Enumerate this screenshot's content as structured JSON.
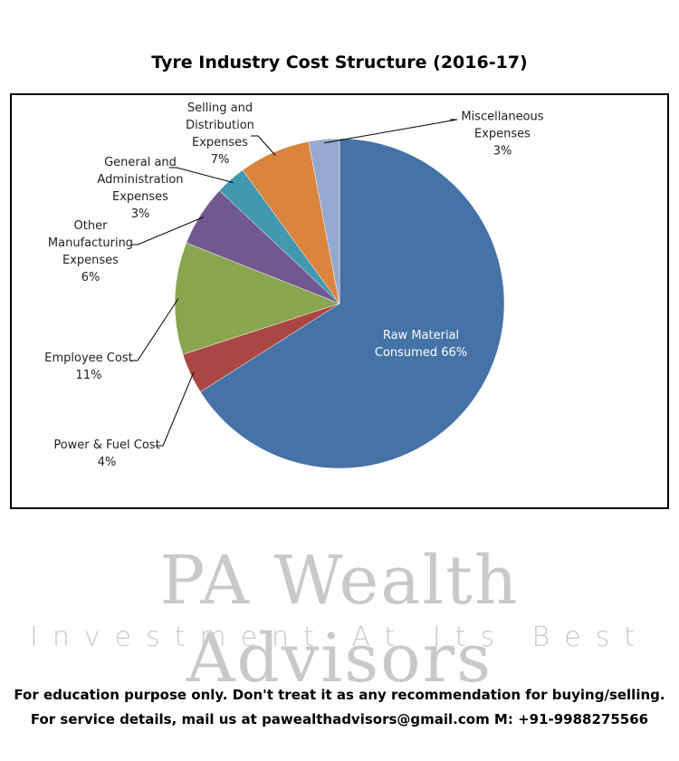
{
  "chart_data": {
    "type": "pie",
    "title": "Tyre Industry Cost Structure (2016-17)",
    "categories": [
      "Raw Material Consumed",
      "Power & Fuel Cost",
      "Employee Cost",
      "Other Manufacturing Expenses",
      "General and Administration Expenses",
      "Selling and Distribution Expenses",
      "Miscellaneous Expenses"
    ],
    "values": [
      66,
      4,
      11,
      6,
      3,
      7,
      3
    ],
    "value_labels": [
      "66%",
      "4%",
      "11%",
      "6%",
      "3%",
      "7%",
      "3%"
    ],
    "colors": [
      "#4572a7",
      "#aa4643",
      "#89a54e",
      "#71588f",
      "#4198af",
      "#db843d",
      "#93a9cf"
    ]
  },
  "watermark": {
    "name": "PA Wealth Advisors",
    "tagline": "Investment At Its Best"
  },
  "footer": [
    "For education purpose only. Don't treat it as any recommendation for buying/selling.",
    "For service details, mail us at pawealthadvisors@gmail.com M: +91-9988275566"
  ]
}
